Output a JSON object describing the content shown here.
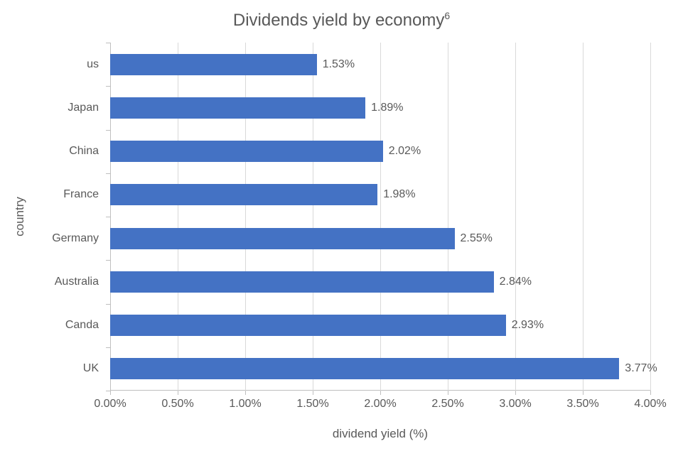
{
  "chart": {
    "type": "horizontal-bar",
    "title_html": "Dividends yield by economy<sup>6</sup>",
    "x_axis_title": "dividend yield (%)",
    "y_axis_title": "country",
    "background_color": "#ffffff",
    "bar_color": "#4472c4",
    "text_color": "#595959",
    "gridline_color": "#d9d9d9",
    "axis_line_color": "#bfbfbf",
    "title_fontsize": 24,
    "axis_title_fontsize": 17,
    "tick_label_fontsize": 16,
    "data_label_fontsize": 16,
    "x_min": 0.0,
    "x_max": 4.0,
    "x_tick_step": 0.5,
    "x_tick_format_decimals": 2,
    "x_tick_suffix": "%",
    "bar_width_ratio": 0.49,
    "categories_top_to_bottom": [
      "us",
      "Japan",
      "China",
      "France",
      "Germany",
      "Australia",
      "Canda",
      "UK"
    ],
    "values_top_to_bottom": [
      1.53,
      1.89,
      2.02,
      1.98,
      2.55,
      2.84,
      2.93,
      3.77
    ],
    "data_label_suffix": "%",
    "data_label_decimals": 2
  }
}
